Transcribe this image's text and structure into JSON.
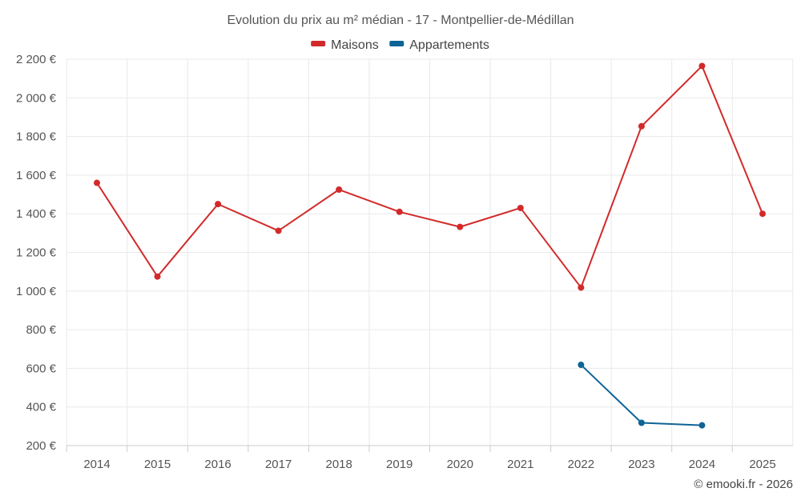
{
  "chart_data": {
    "type": "line",
    "title": "Evolution du prix au m² médian - 17 - Montpellier-de-Médillan",
    "credit": "© emooki.fr - 2026",
    "categories": [
      "2014",
      "2015",
      "2016",
      "2017",
      "2018",
      "2019",
      "2020",
      "2021",
      "2022",
      "2023",
      "2024",
      "2025"
    ],
    "ylim": [
      200,
      2200
    ],
    "yticks": [
      200,
      400,
      600,
      800,
      1000,
      1200,
      1400,
      1600,
      1800,
      2000,
      2200
    ],
    "ytick_labels": [
      "200 €",
      "400 €",
      "600 €",
      "800 €",
      "1 000 €",
      "1 200 €",
      "1 400 €",
      "1 600 €",
      "1 800 €",
      "2 000 €",
      "2 200 €"
    ],
    "xlabel": "",
    "ylabel": "",
    "grid": true,
    "legend_position": "top-center",
    "series": [
      {
        "name": "Maisons",
        "color": "#d22a2a",
        "values": [
          1560,
          1075,
          1450,
          1312,
          1525,
          1410,
          1332,
          1430,
          1018,
          1853,
          2165,
          1400
        ]
      },
      {
        "name": "Appartements",
        "color": "#0e6496",
        "values": [
          null,
          null,
          null,
          null,
          null,
          null,
          null,
          null,
          618,
          318,
          305,
          null
        ]
      }
    ]
  }
}
